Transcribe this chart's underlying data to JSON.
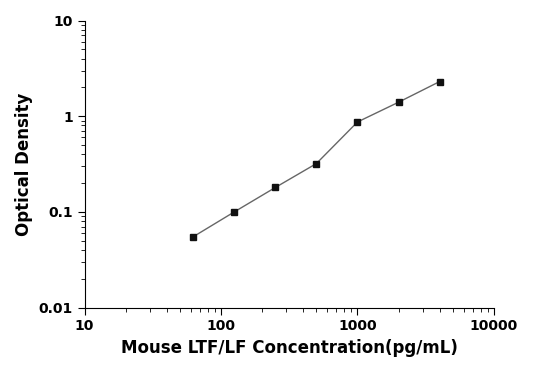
{
  "x": [
    62.5,
    125,
    250,
    500,
    1000,
    2000,
    4000
  ],
  "y": [
    0.055,
    0.1,
    0.18,
    0.32,
    0.87,
    1.4,
    2.3
  ],
  "xlim": [
    10,
    10000
  ],
  "ylim": [
    0.01,
    10
  ],
  "xlabel": "Mouse LTF/LF Concentration(pg/mL)",
  "ylabel": "Optical Density",
  "xticks": [
    10,
    100,
    1000,
    10000
  ],
  "xticklabels": [
    "10",
    "100",
    "1000",
    "10000"
  ],
  "yticks": [
    0.01,
    0.1,
    1,
    10
  ],
  "yticklabels": [
    "0.01",
    "0.1",
    "1",
    "10"
  ],
  "line_color": "#666666",
  "marker_color": "#111111",
  "marker": "s",
  "marker_size": 5,
  "line_width": 1.0,
  "background_color": "#ffffff",
  "xlabel_fontsize": 12,
  "ylabel_fontsize": 12,
  "tick_fontsize": 10,
  "xlabel_fontweight": "bold",
  "ylabel_fontweight": "bold",
  "tick_fontweight": "bold"
}
